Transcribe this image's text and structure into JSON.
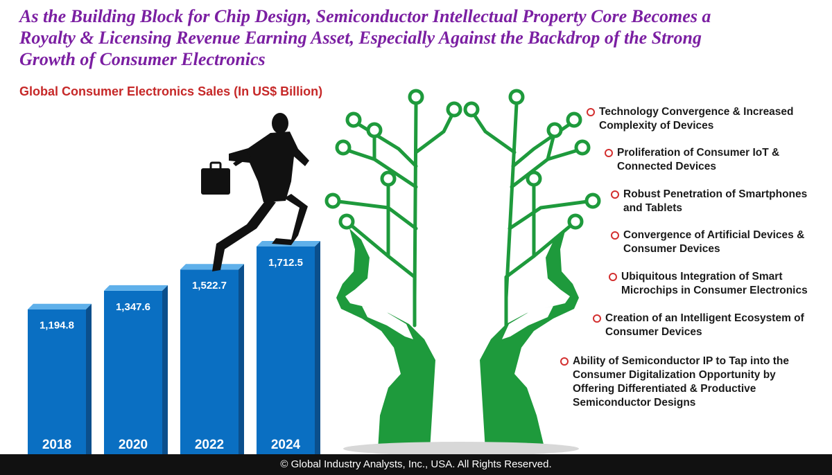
{
  "headline": {
    "line1": "As the Building Block for Chip Design, Semiconductor Intellectual Property Core Becomes a",
    "line2": "Royalty & Licensing Revenue Earning Asset, Especially Against the Backdrop of the Strong",
    "line3": "Growth of Consumer Electronics"
  },
  "chart_data": {
    "type": "bar",
    "title": "Global Consumer Electronics Sales (In US$ Billion)",
    "categories": [
      "2018",
      "2020",
      "2022",
      "2024"
    ],
    "values": [
      1194.8,
      1347.6,
      1522.7,
      1712.5
    ],
    "value_labels": [
      "1,194.8",
      "1,347.6",
      "1,522.7",
      "1,712.5"
    ],
    "xlabel": "",
    "ylabel": "",
    "grid": false,
    "colors": {
      "bar_front": "#0a6fc2",
      "bar_top": "#5fb0ea",
      "bar_side": "#0b4f8c"
    }
  },
  "drivers": [
    "Technology Convergence & Increased Complexity of Devices",
    "Proliferation of Consumer IoT & Connected Devices",
    "Robust Penetration of Smartphones and Tablets",
    "Convergence of Artificial Devices & Consumer Devices",
    "Ubiquitous Integration of Smart Microchips in Consumer Electronics",
    "Creation of an Intelligent Ecosystem of Consumer Devices",
    "Ability of Semiconductor IP to Tap into the Consumer Digitalization Opportunity by Offering Differentiated & Productive Semiconductor Designs"
  ],
  "colors": {
    "headline": "#7b1fa2",
    "chart_title": "#c62828",
    "tree": "#1e9a3c",
    "bullet": "#d32f2f",
    "footer_bg": "#111111"
  },
  "icons": {
    "person": "businessman-climbing-icon",
    "tree": "circuit-tree-hands-icon",
    "bullet": "red-ring-bullet-icon"
  },
  "footer": "© Global Industry Analysts, Inc., USA. All Rights Reserved."
}
